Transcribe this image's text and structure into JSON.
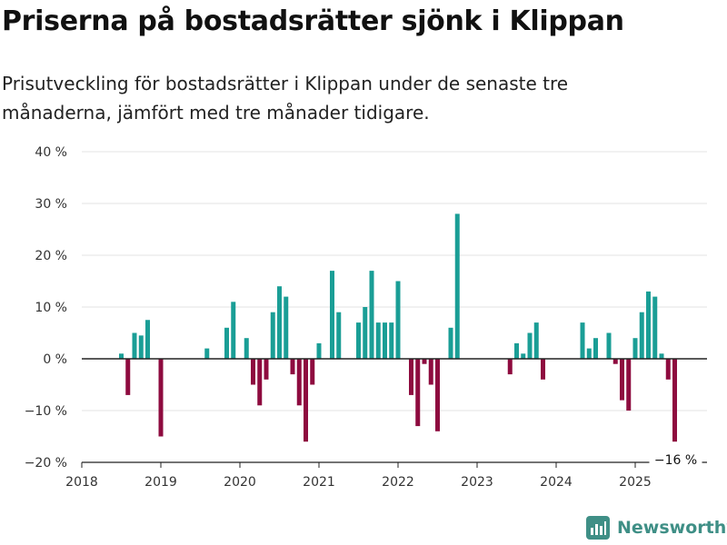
{
  "header": {
    "title": "Priserna på bostadsrätter sjönk i Klippan",
    "subtitle": "Prisutveckling för bostadsrätter i Klippan under de senaste tre månaderna, jämfört med tre månader tidigare."
  },
  "brand": {
    "name": "Newsworthy",
    "icon": "newsworthy-logo-icon"
  },
  "colors": {
    "positive": "#1a9e96",
    "negative": "#8e0b3f",
    "grid": "#e3e3e3",
    "zero": "#222222"
  },
  "chart_data": {
    "type": "bar",
    "title": "Priserna på bostadsrätter sjönk i Klippan",
    "subtitle": "Prisutveckling för bostadsrätter i Klippan under de senaste tre månaderna, jämfört med tre månader tidigare.",
    "ylim": [
      -20,
      40
    ],
    "yticks": [
      40,
      30,
      20,
      10,
      0,
      -10,
      -20
    ],
    "ytick_labels": [
      "40 %",
      "30 %",
      "20 %",
      "10 %",
      "0 %",
      "−10 %",
      "−20 %"
    ],
    "xticks": [
      "2018",
      "2019",
      "2020",
      "2021",
      "2022",
      "2023",
      "2024",
      "2025"
    ],
    "x_range": [
      "2018-01",
      "2025-09"
    ],
    "grid": true,
    "annotation": {
      "text": "−16 %",
      "date": "2025-07"
    },
    "data": [
      {
        "date": "2018-07",
        "value": 1
      },
      {
        "date": "2018-08",
        "value": -7
      },
      {
        "date": "2018-09",
        "value": 5
      },
      {
        "date": "2018-10",
        "value": 4.5
      },
      {
        "date": "2018-11",
        "value": 7.5
      },
      {
        "date": "2019-01",
        "value": -15
      },
      {
        "date": "2019-08",
        "value": 2
      },
      {
        "date": "2019-11",
        "value": 6
      },
      {
        "date": "2019-12",
        "value": 11
      },
      {
        "date": "2020-02",
        "value": 4
      },
      {
        "date": "2020-03",
        "value": -5
      },
      {
        "date": "2020-04",
        "value": -9
      },
      {
        "date": "2020-05",
        "value": -4
      },
      {
        "date": "2020-06",
        "value": 9
      },
      {
        "date": "2020-07",
        "value": 14
      },
      {
        "date": "2020-08",
        "value": 12
      },
      {
        "date": "2020-09",
        "value": -3
      },
      {
        "date": "2020-10",
        "value": -9
      },
      {
        "date": "2020-11",
        "value": -16
      },
      {
        "date": "2020-12",
        "value": -5
      },
      {
        "date": "2021-01",
        "value": 3
      },
      {
        "date": "2021-03",
        "value": 17
      },
      {
        "date": "2021-04",
        "value": 9
      },
      {
        "date": "2021-07",
        "value": 7
      },
      {
        "date": "2021-08",
        "value": 10
      },
      {
        "date": "2021-09",
        "value": 17
      },
      {
        "date": "2021-10",
        "value": 7
      },
      {
        "date": "2021-11",
        "value": 7
      },
      {
        "date": "2021-12",
        "value": 7
      },
      {
        "date": "2022-01",
        "value": 15
      },
      {
        "date": "2022-03",
        "value": -7
      },
      {
        "date": "2022-04",
        "value": -13
      },
      {
        "date": "2022-05",
        "value": -1
      },
      {
        "date": "2022-06",
        "value": -5
      },
      {
        "date": "2022-07",
        "value": -14
      },
      {
        "date": "2022-09",
        "value": 6
      },
      {
        "date": "2022-10",
        "value": 28
      },
      {
        "date": "2023-06",
        "value": -3
      },
      {
        "date": "2023-07",
        "value": 3
      },
      {
        "date": "2023-08",
        "value": 1
      },
      {
        "date": "2023-09",
        "value": 5
      },
      {
        "date": "2023-10",
        "value": 7
      },
      {
        "date": "2023-11",
        "value": -4
      },
      {
        "date": "2024-05",
        "value": 7
      },
      {
        "date": "2024-06",
        "value": 2
      },
      {
        "date": "2024-07",
        "value": 4
      },
      {
        "date": "2024-09",
        "value": 5
      },
      {
        "date": "2024-10",
        "value": -1
      },
      {
        "date": "2024-11",
        "value": -8
      },
      {
        "date": "2024-12",
        "value": -10
      },
      {
        "date": "2025-01",
        "value": 4
      },
      {
        "date": "2025-02",
        "value": 9
      },
      {
        "date": "2025-03",
        "value": 13
      },
      {
        "date": "2025-04",
        "value": 12
      },
      {
        "date": "2025-05",
        "value": 1
      },
      {
        "date": "2025-06",
        "value": -4
      },
      {
        "date": "2025-07",
        "value": -16
      }
    ]
  }
}
